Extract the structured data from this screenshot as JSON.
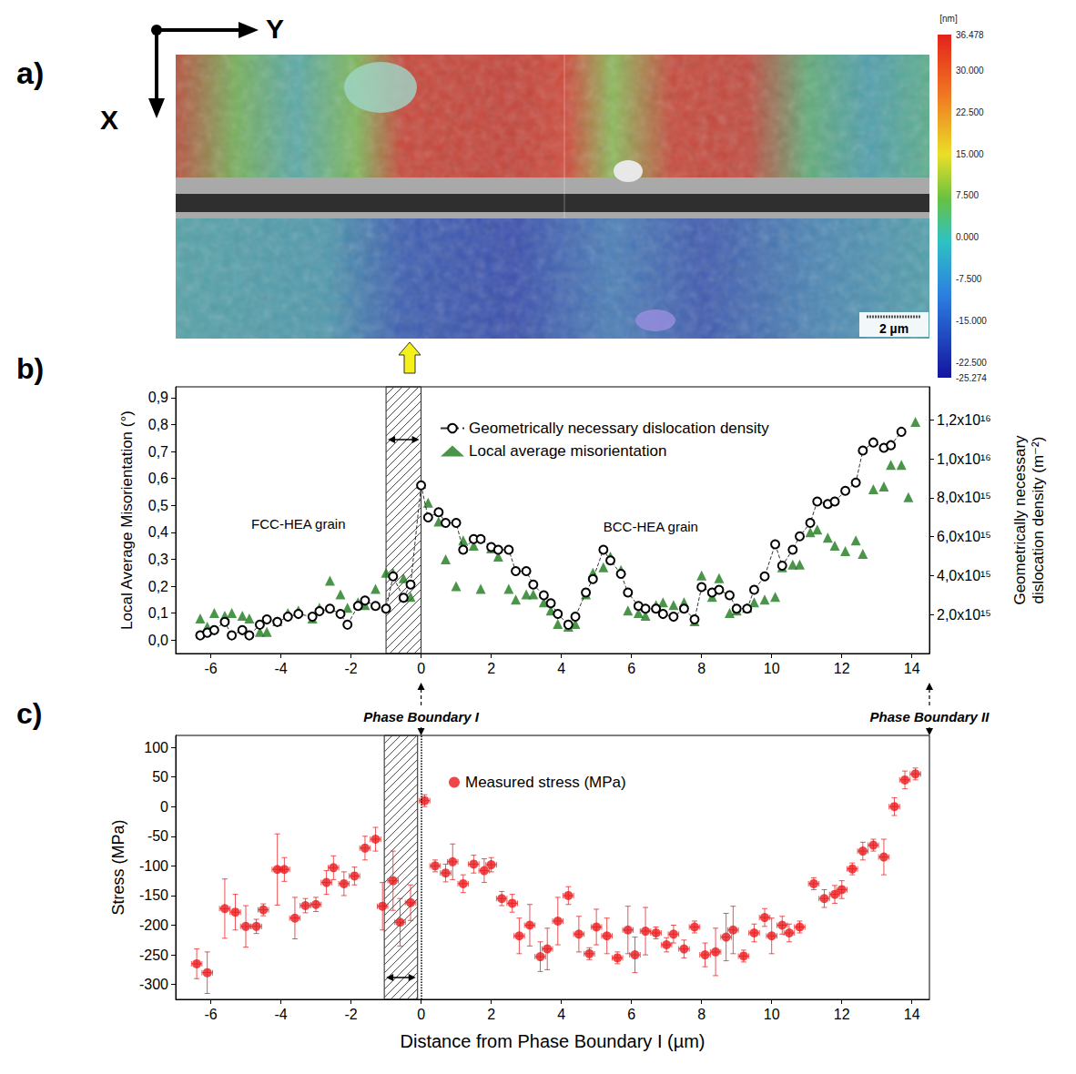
{
  "chart_data": [
    {
      "type": "image",
      "panel_label": "a)",
      "xlabel": "X",
      "ylabel": "Y",
      "scale_bar": "2 µm",
      "colorbar": {
        "title": "[nm]",
        "range": [
          -25.274,
          36.478
        ],
        "ticks": [
          36.478,
          {
            "value": 30,
            "label": "30.000"
          },
          {
            "value": 22.5,
            "label": "22.500"
          },
          {
            "value": 15,
            "label": "15.000"
          },
          {
            "value": 7.5,
            "label": "7.500"
          },
          {
            "value": 0,
            "label": "0.000"
          },
          {
            "value": -7.5,
            "label": "-7.500"
          },
          {
            "value": -15,
            "label": "-15.000"
          },
          {
            "value": -22.5,
            "label": "-22.500"
          },
          -25.274
        ]
      }
    },
    {
      "type": "scatter",
      "panel_label": "b)",
      "ylabel": "Local Average Misorientation (°)",
      "y2label": "Geometrically necessary dislocation density (m⁻²)",
      "xlim": [
        -7,
        14.5
      ],
      "xticks": [
        -6,
        -4,
        -2,
        0,
        2,
        4,
        6,
        8,
        10,
        12,
        14
      ],
      "ylim": [
        -0.05,
        0.94
      ],
      "yticks": [
        {
          "value": 0,
          "label": "0,0"
        },
        {
          "value": 0.1,
          "label": "0,1"
        },
        {
          "value": 0.2,
          "label": "0,2"
        },
        {
          "value": 0.3,
          "label": "0,3"
        },
        {
          "value": 0.4,
          "label": "0,4"
        },
        {
          "value": 0.5,
          "label": "0,5"
        },
        {
          "value": 0.6,
          "label": "0,6"
        },
        {
          "value": 0.7,
          "label": "0,7"
        },
        {
          "value": 0.8,
          "label": "0,8"
        },
        {
          "value": 0.9,
          "label": "0,9"
        }
      ],
      "y2lim": [
        0,
        1.37e+16
      ],
      "y2ticks": [
        {
          "value": 2000000000000000.0,
          "label": "2,0x10¹⁵"
        },
        {
          "value": 4000000000000000.0,
          "label": "4,0x10¹⁵"
        },
        {
          "value": 6000000000000000.0,
          "label": "6,0x10¹⁵"
        },
        {
          "value": 8000000000000000.0,
          "label": "8,0x10¹⁵"
        },
        {
          "value": 1e+16,
          "label": "1,0x10¹⁶"
        },
        {
          "value": 1.2e+16,
          "label": "1,2x10¹⁶"
        }
      ],
      "grid": false,
      "legend": "top",
      "hatched_range": [
        -1,
        0
      ],
      "annotations": [
        {
          "text": "FCC-HEA grain",
          "x": -3.5,
          "y": 0.43
        },
        {
          "text": "BCC-HEA grain",
          "x": 6.55,
          "y": 0.42
        },
        {
          "text": "Phase Boundary I",
          "x": 0
        },
        {
          "text": "Phase Boundary II",
          "x": 14.5
        }
      ],
      "series": [
        {
          "name": "Geometrically necessary dislocation density",
          "type": "line",
          "axis": "y2",
          "color": "#000000",
          "marker": "open_circle",
          "line_style": "dashed",
          "x": [
            -6.3,
            -6.1,
            -5.9,
            -5.6,
            -5.4,
            -5.1,
            -4.9,
            -4.6,
            -4.4,
            -4.1,
            -3.8,
            -3.5,
            -3.1,
            -2.9,
            -2.6,
            -2.3,
            -2.1,
            -1.8,
            -1.6,
            -1.3,
            -1.0,
            -0.8,
            -0.5,
            -0.3,
            0.0,
            0.2,
            0.5,
            0.7,
            1.0,
            1.2,
            1.5,
            1.7,
            2.0,
            2.2,
            2.5,
            2.7,
            3.0,
            3.2,
            3.5,
            3.7,
            3.9,
            4.2,
            4.4,
            4.7,
            4.9,
            5.2,
            5.4,
            5.7,
            5.9,
            6.2,
            6.4,
            6.7,
            6.9,
            7.2,
            7.5,
            7.8,
            8.0,
            8.3,
            8.5,
            8.8,
            9.0,
            9.3,
            9.5,
            9.8,
            10.1,
            10.3,
            10.6,
            10.8,
            11.1,
            11.3,
            11.6,
            11.8,
            12.1,
            12.4,
            12.6,
            12.9,
            13.2,
            13.4,
            13.7
          ],
          "values": [
            930000000000000.0,
            1070000000000000.0,
            1200000000000000.0,
            1620000000000000.0,
            930000000000000.0,
            1200000000000000.0,
            930000000000000.0,
            1480000000000000.0,
            1750000000000000.0,
            1620000000000000.0,
            1890000000000000.0,
            2030000000000000.0,
            1890000000000000.0,
            2170000000000000.0,
            2300000000000000.0,
            2030000000000000.0,
            1480000000000000.0,
            2440000000000000.0,
            2720000000000000.0,
            2440000000000000.0,
            2300000000000000.0,
            3960000000000000.0,
            2860000000000000.0,
            3540000000000000.0,
            8640000000000000.0,
            6990000000000000.0,
            7260000000000000.0,
            6710000000000000.0,
            6710000000000000.0,
            5330000000000000.0,
            5880000000000000.0,
            5880000000000000.0,
            5470000000000000.0,
            5330000000000000.0,
            5330000000000000.0,
            4230000000000000.0,
            4230000000000000.0,
            3540000000000000.0,
            2990000000000000.0,
            2580000000000000.0,
            2030000000000000.0,
            1480000000000000.0,
            1890000000000000.0,
            3130000000000000.0,
            3820000000000000.0,
            5330000000000000.0,
            4780000000000000.0,
            4090000000000000.0,
            3130000000000000.0,
            2440000000000000.0,
            2300000000000000.0,
            2300000000000000.0,
            2030000000000000.0,
            1890000000000000.0,
            2300000000000000.0,
            1750000000000000.0,
            3410000000000000.0,
            3130000000000000.0,
            3270000000000000.0,
            2990000000000000.0,
            2300000000000000.0,
            2300000000000000.0,
            3270000000000000.0,
            3960000000000000.0,
            5610000000000000.0,
            4510000000000000.0,
            5330000000000000.0,
            6020000000000000.0,
            6710000000000000.0,
            7810000000000000.0,
            7680000000000000.0,
            7810000000000000.0,
            8360000000000000.0,
            8780000000000000.0,
            1.043e+16,
            1.084e+16,
            1.057e+16,
            1.07e+16,
            1.139e+16
          ]
        },
        {
          "name": "Local average misorientation",
          "type": "scatter",
          "color": "#1e7b1e",
          "marker": "triangle",
          "x": [
            -6.3,
            -6.1,
            -5.9,
            -5.6,
            -5.4,
            -5.1,
            -4.9,
            -4.6,
            -4.4,
            -4.1,
            -3.8,
            -3.5,
            -3.1,
            -2.9,
            -2.6,
            -2.3,
            -2.1,
            -1.8,
            -1.6,
            -1.3,
            -1.0,
            -0.8,
            -0.5,
            -0.3,
            0.0,
            0.2,
            0.5,
            0.7,
            1.0,
            1.2,
            1.5,
            1.7,
            2.0,
            2.2,
            2.5,
            2.7,
            3.0,
            3.2,
            3.5,
            3.7,
            3.9,
            4.2,
            4.4,
            4.7,
            4.9,
            5.2,
            5.4,
            5.7,
            5.9,
            6.2,
            6.4,
            6.7,
            6.9,
            7.2,
            7.5,
            7.8,
            8.0,
            8.3,
            8.5,
            8.8,
            9.0,
            9.3,
            9.5,
            9.8,
            10.1,
            10.3,
            10.6,
            10.8,
            11.1,
            11.3,
            11.6,
            11.8,
            12.1,
            12.4,
            12.6,
            12.9,
            13.2,
            13.4,
            13.7,
            13.9,
            14.1
          ],
          "values": [
            0.08,
            0.05,
            0.1,
            0.09,
            0.1,
            0.09,
            0.08,
            0.03,
            0.03,
            0.07,
            0.1,
            0.11,
            0.08,
            0.12,
            0.22,
            0.17,
            0.12,
            0.14,
            0.13,
            0.19,
            0.25,
            0.25,
            0.23,
            0.16,
            0.58,
            0.51,
            0.44,
            0.3,
            0.2,
            0.37,
            0.35,
            0.19,
            0.34,
            0.31,
            0.19,
            0.15,
            0.17,
            0.17,
            0.14,
            0.11,
            0.06,
            0.05,
            0.06,
            0.17,
            0.25,
            0.27,
            0.31,
            0.26,
            0.11,
            0.1,
            0.09,
            0.13,
            0.14,
            0.13,
            0.14,
            0.07,
            0.24,
            0.16,
            0.23,
            0.1,
            0.11,
            0.12,
            0.14,
            0.15,
            0.16,
            0.27,
            0.28,
            0.28,
            0.4,
            0.41,
            0.38,
            0.35,
            0.33,
            0.37,
            0.32,
            0.56,
            0.57,
            0.65,
            0.65,
            0.53,
            0.81
          ]
        }
      ]
    },
    {
      "type": "scatter",
      "panel_label": "c)",
      "xlabel": "Distance from Phase Boundary I (µm)",
      "ylabel": "Stress (MPa)",
      "xlim": [
        -7,
        14.5
      ],
      "xticks": [
        -6,
        -4,
        -2,
        0,
        2,
        4,
        6,
        8,
        10,
        12,
        14
      ],
      "ylim": [
        -325,
        120
      ],
      "yticks": [
        100,
        50,
        0,
        -50,
        -100,
        -150,
        -200,
        -250,
        -300
      ],
      "grid": false,
      "legend": "top",
      "hatched_range": [
        -1.05,
        -0.1
      ],
      "boundary_x": 0,
      "series": [
        {
          "name": "Measured stress (MPa)",
          "color": "#e8191b",
          "marker": "circle",
          "x_error": 0.15,
          "x": [
            -6.4,
            -6.1,
            -5.6,
            -5.3,
            -5.0,
            -4.7,
            -4.5,
            -4.1,
            -3.9,
            -3.6,
            -3.3,
            -3.0,
            -2.7,
            -2.5,
            -2.2,
            -1.9,
            -1.6,
            -1.3,
            -1.1,
            -0.8,
            -0.6,
            -0.3,
            0.1,
            0.4,
            0.7,
            0.9,
            1.2,
            1.5,
            1.8,
            2.0,
            2.3,
            2.6,
            2.8,
            3.1,
            3.4,
            3.6,
            3.9,
            4.2,
            4.5,
            4.8,
            5.0,
            5.3,
            5.6,
            5.9,
            6.1,
            6.4,
            6.7,
            7.0,
            7.2,
            7.5,
            7.8,
            8.1,
            8.4,
            8.7,
            8.9,
            9.2,
            9.5,
            9.8,
            10.0,
            10.3,
            10.5,
            10.8,
            11.2,
            11.5,
            11.8,
            12.0,
            12.3,
            12.6,
            12.9,
            13.2,
            13.5,
            13.8,
            14.1
          ],
          "values": [
            -265,
            -280,
            -172,
            -178,
            -202,
            -202,
            -174,
            -106,
            -106,
            -188,
            -167,
            -165,
            -128,
            -103,
            -130,
            -117,
            -70,
            -55,
            -168,
            -125,
            -195,
            -162,
            10,
            -100,
            -112,
            -93,
            -130,
            -97,
            -108,
            -98,
            -155,
            -163,
            -218,
            -200,
            -253,
            -240,
            -193,
            -150,
            -215,
            -248,
            -203,
            -218,
            -255,
            -208,
            -250,
            -210,
            -213,
            -233,
            -215,
            -240,
            -203,
            -250,
            -245,
            -220,
            -208,
            -252,
            -213,
            -187,
            -218,
            -200,
            -213,
            -203,
            -130,
            -155,
            -148,
            -140,
            -105,
            -75,
            -65,
            -85,
            0,
            45,
            55
          ],
          "errors": [
            25,
            35,
            50,
            30,
            35,
            12,
            10,
            60,
            20,
            35,
            12,
            12,
            20,
            20,
            20,
            15,
            20,
            20,
            40,
            50,
            40,
            30,
            10,
            10,
            15,
            30,
            15,
            15,
            20,
            12,
            12,
            15,
            30,
            35,
            25,
            35,
            40,
            15,
            30,
            10,
            30,
            30,
            10,
            40,
            30,
            40,
            10,
            12,
            15,
            15,
            10,
            20,
            40,
            40,
            40,
            10,
            15,
            15,
            30,
            15,
            15,
            10,
            10,
            15,
            15,
            15,
            10,
            15,
            10,
            30,
            15,
            15,
            10
          ]
        }
      ]
    }
  ]
}
